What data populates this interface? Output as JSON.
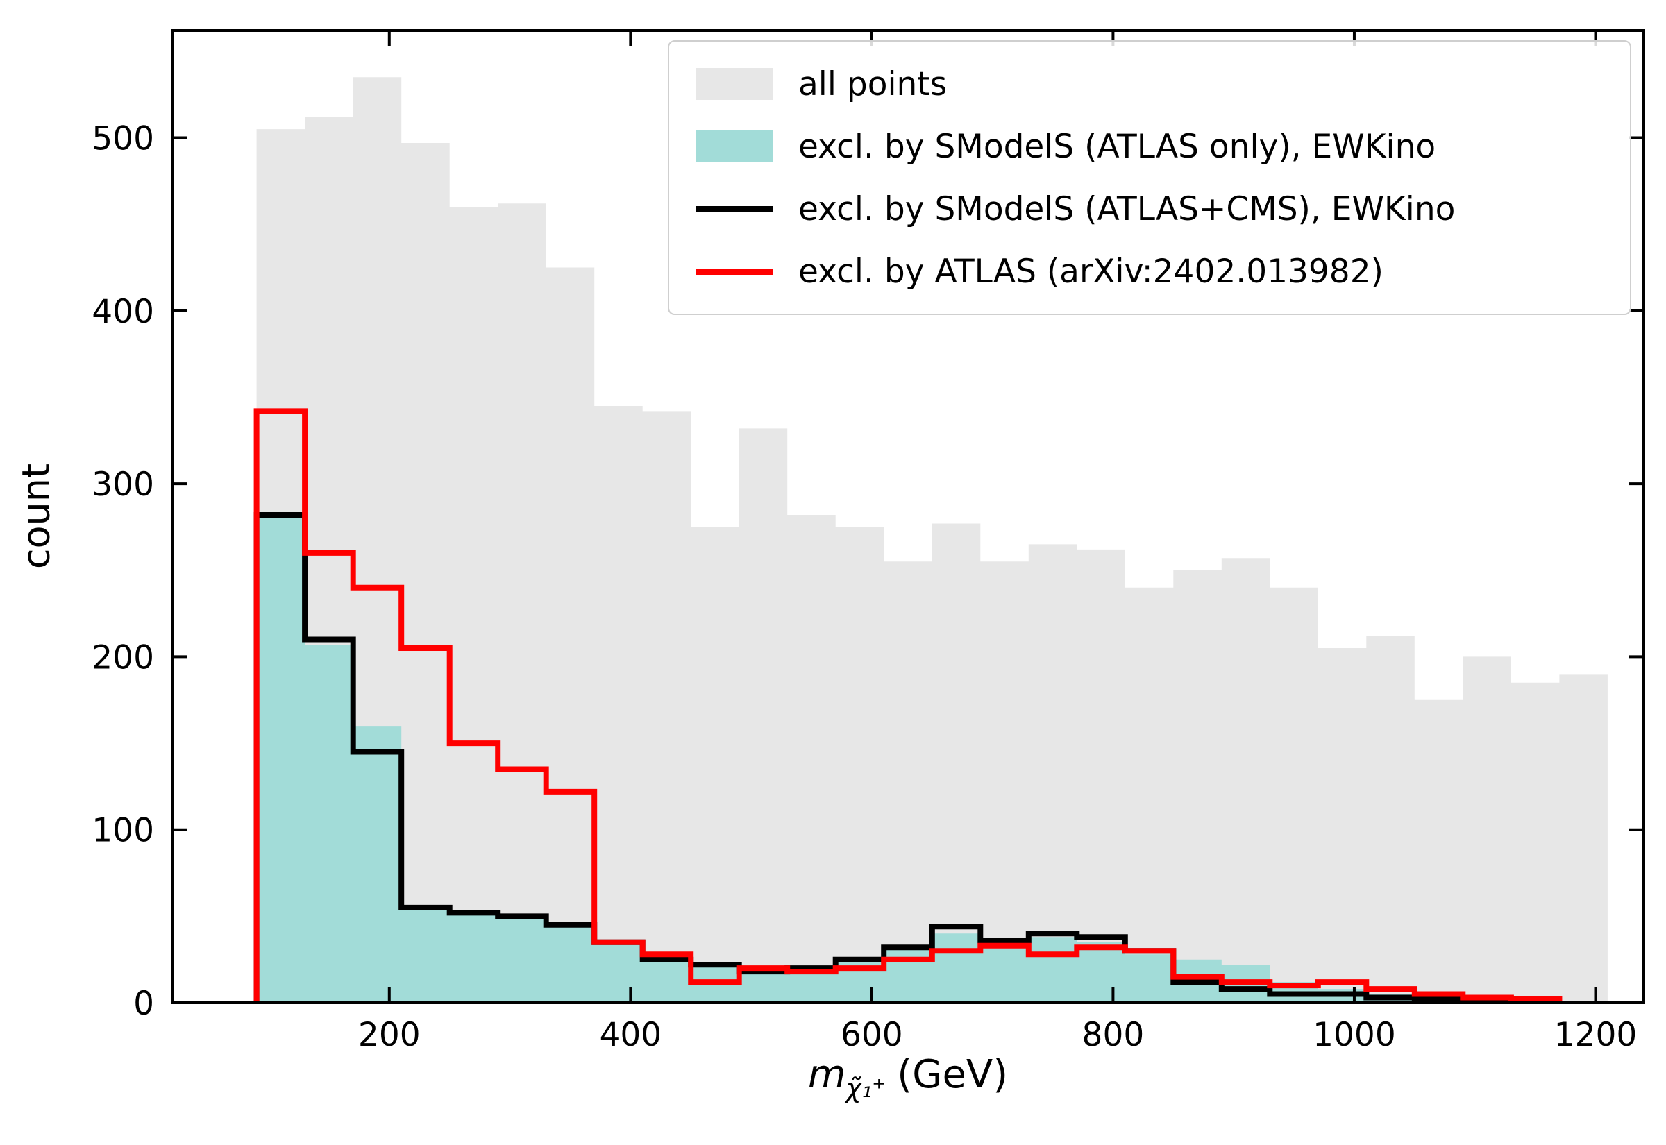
{
  "figure": {
    "background": "#ffffff"
  },
  "chart_data": {
    "type": "bar",
    "subtype": "step-histogram",
    "title": "",
    "xlabel_var": "m",
    "xlabel_sub": "χ̃₁⁺",
    "xlabel_unit": "(GeV)",
    "ylabel": "count",
    "xlim": [
      20,
      1240
    ],
    "ylim": [
      0,
      562
    ],
    "xticks": [
      200,
      400,
      600,
      800,
      1000,
      1200
    ],
    "yticks": [
      0,
      100,
      200,
      300,
      400,
      500
    ],
    "grid": false,
    "legend_position": "upper right",
    "bin_edges": [
      90,
      130,
      170,
      210,
      250,
      290,
      330,
      370,
      410,
      450,
      490,
      530,
      570,
      610,
      650,
      690,
      730,
      770,
      810,
      850,
      890,
      930,
      970,
      1010,
      1050,
      1090,
      1130,
      1170,
      1210
    ],
    "series": [
      {
        "name": "all points",
        "style": "filled",
        "color": "#e7e7e7",
        "values": [
          505,
          512,
          535,
          497,
          460,
          462,
          425,
          345,
          342,
          275,
          332,
          282,
          275,
          255,
          277,
          255,
          265,
          262,
          240,
          250,
          257,
          240,
          205,
          212,
          175,
          200,
          185,
          190
        ]
      },
      {
        "name": "excl. by SModelS (ATLAS only), EWKino",
        "style": "filled",
        "color": "#a2dcd8",
        "values": [
          280,
          207,
          160,
          55,
          52,
          50,
          45,
          35,
          25,
          22,
          18,
          20,
          25,
          32,
          40,
          35,
          38,
          35,
          28,
          25,
          22,
          12,
          8,
          5,
          3,
          2,
          1,
          0
        ]
      },
      {
        "name": "excl. by SModelS (ATLAS+CMS), EWKino",
        "style": "step-line",
        "color": "#000000",
        "values": [
          282,
          210,
          145,
          55,
          52,
          50,
          45,
          35,
          25,
          22,
          18,
          20,
          25,
          32,
          44,
          36,
          40,
          38,
          30,
          12,
          8,
          5,
          5,
          3,
          2,
          1,
          0,
          0
        ]
      },
      {
        "name": "excl. by ATLAS (arXiv:2402.013982)",
        "style": "step-line",
        "color": "#ff0000",
        "values": [
          342,
          260,
          240,
          205,
          150,
          135,
          122,
          35,
          28,
          12,
          20,
          18,
          20,
          25,
          30,
          33,
          28,
          32,
          30,
          15,
          12,
          10,
          12,
          8,
          5,
          3,
          2,
          0
        ]
      }
    ],
    "legend": [
      {
        "label": "all points",
        "type": "patch",
        "color": "#e7e7e7"
      },
      {
        "label": "excl. by SModelS (ATLAS only), EWKino",
        "type": "patch",
        "color": "#a2dcd8"
      },
      {
        "label": "excl. by SModelS (ATLAS+CMS), EWKino",
        "type": "line",
        "color": "#000000"
      },
      {
        "label": "excl. by ATLAS (arXiv:2402.013982)",
        "type": "line",
        "color": "#ff0000"
      }
    ]
  }
}
